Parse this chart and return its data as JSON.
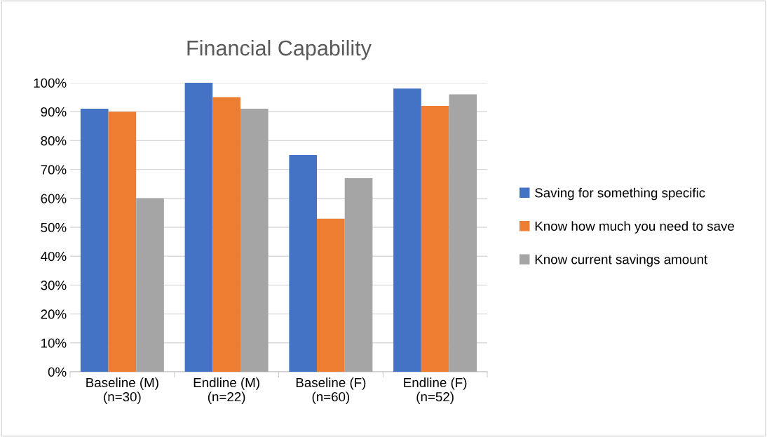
{
  "chart_data": {
    "type": "bar",
    "title": "Financial Capability",
    "categories": [
      "Baseline (M)\n(n=30)",
      "Endline (M)\n(n=22)",
      "Baseline (F)\n(n=60)",
      "Endline (F)\n(n=52)"
    ],
    "series": [
      {
        "name": "Saving for something specific",
        "color": "#4472c4",
        "values": [
          91,
          100,
          75,
          98
        ]
      },
      {
        "name": "Know how much you need to save",
        "color": "#ed7d31",
        "values": [
          90,
          95,
          53,
          92
        ]
      },
      {
        "name": "Know current savings amount",
        "color": "#a5a5a5",
        "values": [
          60,
          91,
          67,
          96
        ]
      }
    ],
    "ylim": [
      0,
      100
    ],
    "yticks": [
      {
        "value": 0,
        "label": "0%"
      },
      {
        "value": 10,
        "label": "10%"
      },
      {
        "value": 20,
        "label": "20%"
      },
      {
        "value": 30,
        "label": "30%"
      },
      {
        "value": 40,
        "label": "40%"
      },
      {
        "value": 50,
        "label": "50%"
      },
      {
        "value": 60,
        "label": "60%"
      },
      {
        "value": 70,
        "label": "70%"
      },
      {
        "value": 80,
        "label": "80%"
      },
      {
        "value": 90,
        "label": "90%"
      },
      {
        "value": 100,
        "label": "100%"
      }
    ],
    "grid": "y",
    "legend": "right"
  }
}
